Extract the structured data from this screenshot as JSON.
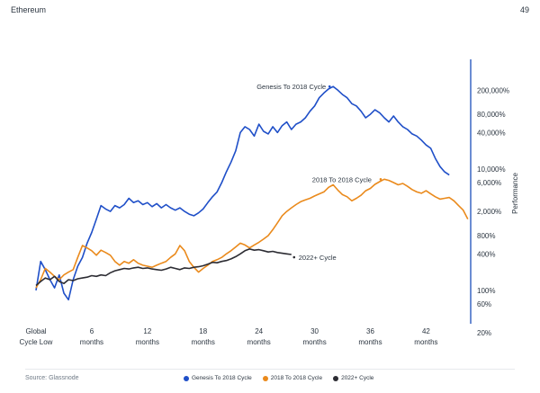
{
  "header": {
    "title": "Ethereum",
    "page_number": "49"
  },
  "source": "Source: Glassnode",
  "colors": {
    "genesis": "#1f4fc8",
    "cycle2018": "#ea8a1c",
    "cycle2022": "#2c2c33",
    "axis": "#3a66c4"
  },
  "chart_data": {
    "type": "line",
    "ylabel": "Performance",
    "yscale": "log",
    "ylim": [
      20,
      400000
    ],
    "xlim": [
      0,
      47
    ],
    "x_ticks": [
      {
        "v": 0,
        "line1": "Global",
        "line2": "Cycle Low"
      },
      {
        "v": 6,
        "line1": "6",
        "line2": "months"
      },
      {
        "v": 12,
        "line1": "12",
        "line2": "months"
      },
      {
        "v": 18,
        "line1": "18",
        "line2": "months"
      },
      {
        "v": 24,
        "line1": "24",
        "line2": "months"
      },
      {
        "v": 30,
        "line1": "30",
        "line2": "months"
      },
      {
        "v": 36,
        "line1": "36",
        "line2": "months"
      },
      {
        "v": 42,
        "line1": "42",
        "line2": "months"
      }
    ],
    "y_ticks": [
      {
        "v": 200000,
        "label": "200,000%"
      },
      {
        "v": 80000,
        "label": "80,000%"
      },
      {
        "v": 40000,
        "label": "40,000%"
      },
      {
        "v": 10000,
        "label": "10,000%"
      },
      {
        "v": 6000,
        "label": "6,000%"
      },
      {
        "v": 2000,
        "label": "2,000%"
      },
      {
        "v": 800,
        "label": "800%"
      },
      {
        "v": 400,
        "label": "400%"
      },
      {
        "v": 100,
        "label": "100%"
      },
      {
        "v": 60,
        "label": "60%"
      },
      {
        "v": 20,
        "label": "20%"
      }
    ],
    "series": [
      {
        "name": "Genesis To 2018 Cycle",
        "key": "genesis",
        "points": [
          [
            0,
            100
          ],
          [
            0.5,
            300
          ],
          [
            1,
            220
          ],
          [
            1.5,
            150
          ],
          [
            2,
            110
          ],
          [
            2.5,
            180
          ],
          [
            3,
            90
          ],
          [
            3.5,
            70
          ],
          [
            4,
            150
          ],
          [
            4.5,
            250
          ],
          [
            5,
            350
          ],
          [
            5.5,
            600
          ],
          [
            6,
            900
          ],
          [
            6.5,
            1500
          ],
          [
            7,
            2500
          ],
          [
            7.5,
            2200
          ],
          [
            8,
            2000
          ],
          [
            8.5,
            2500
          ],
          [
            9,
            2300
          ],
          [
            9.5,
            2600
          ],
          [
            10,
            3300
          ],
          [
            10.5,
            2800
          ],
          [
            11,
            3000
          ],
          [
            11.5,
            2600
          ],
          [
            12,
            2800
          ],
          [
            12.5,
            2400
          ],
          [
            13,
            2700
          ],
          [
            13.5,
            2300
          ],
          [
            14,
            2600
          ],
          [
            14.5,
            2300
          ],
          [
            15,
            2100
          ],
          [
            15.5,
            2300
          ],
          [
            16,
            2000
          ],
          [
            16.5,
            1800
          ],
          [
            17,
            1700
          ],
          [
            17.5,
            1900
          ],
          [
            18,
            2200
          ],
          [
            18.5,
            2800
          ],
          [
            19,
            3500
          ],
          [
            19.5,
            4200
          ],
          [
            20,
            6000
          ],
          [
            20.5,
            9000
          ],
          [
            21,
            13000
          ],
          [
            21.5,
            20000
          ],
          [
            22,
            40000
          ],
          [
            22.5,
            50000
          ],
          [
            23,
            45000
          ],
          [
            23.5,
            35000
          ],
          [
            24,
            55000
          ],
          [
            24.5,
            42000
          ],
          [
            25,
            38000
          ],
          [
            25.5,
            50000
          ],
          [
            26,
            40000
          ],
          [
            26.5,
            52000
          ],
          [
            27,
            60000
          ],
          [
            27.5,
            45000
          ],
          [
            28,
            55000
          ],
          [
            28.5,
            60000
          ],
          [
            29,
            70000
          ],
          [
            29.5,
            90000
          ],
          [
            30,
            110000
          ],
          [
            30.5,
            150000
          ],
          [
            31,
            180000
          ],
          [
            31.5,
            210000
          ],
          [
            32,
            230000
          ],
          [
            32.5,
            200000
          ],
          [
            33,
            170000
          ],
          [
            33.5,
            150000
          ],
          [
            34,
            120000
          ],
          [
            34.5,
            110000
          ],
          [
            35,
            90000
          ],
          [
            35.5,
            70000
          ],
          [
            36,
            80000
          ],
          [
            36.5,
            95000
          ],
          [
            37,
            85000
          ],
          [
            37.5,
            70000
          ],
          [
            38,
            60000
          ],
          [
            38.5,
            75000
          ],
          [
            39,
            60000
          ],
          [
            39.5,
            50000
          ],
          [
            40,
            45000
          ],
          [
            40.5,
            38000
          ],
          [
            41,
            35000
          ],
          [
            41.5,
            30000
          ],
          [
            42,
            25000
          ],
          [
            42.5,
            22000
          ],
          [
            43,
            15000
          ],
          [
            43.5,
            11000
          ],
          [
            44,
            9000
          ],
          [
            44.5,
            8000
          ]
        ]
      },
      {
        "name": "2018 To 2018 Cycle",
        "key": "cycle2018",
        "points": [
          [
            0,
            110
          ],
          [
            0.5,
            150
          ],
          [
            1,
            230
          ],
          [
            1.5,
            200
          ],
          [
            2,
            170
          ],
          [
            2.5,
            150
          ],
          [
            3,
            180
          ],
          [
            3.5,
            200
          ],
          [
            4,
            220
          ],
          [
            4.5,
            350
          ],
          [
            5,
            550
          ],
          [
            5.5,
            500
          ],
          [
            6,
            450
          ],
          [
            6.5,
            380
          ],
          [
            7,
            460
          ],
          [
            7.5,
            420
          ],
          [
            8,
            380
          ],
          [
            8.5,
            300
          ],
          [
            9,
            260
          ],
          [
            9.5,
            300
          ],
          [
            10,
            280
          ],
          [
            10.5,
            320
          ],
          [
            11,
            280
          ],
          [
            11.5,
            260
          ],
          [
            12,
            250
          ],
          [
            12.5,
            240
          ],
          [
            13,
            260
          ],
          [
            13.5,
            280
          ],
          [
            14,
            300
          ],
          [
            14.5,
            350
          ],
          [
            15,
            400
          ],
          [
            15.5,
            550
          ],
          [
            16,
            450
          ],
          [
            16.5,
            300
          ],
          [
            17,
            240
          ],
          [
            17.5,
            200
          ],
          [
            18,
            230
          ],
          [
            18.5,
            260
          ],
          [
            19,
            300
          ],
          [
            19.5,
            320
          ],
          [
            20,
            350
          ],
          [
            20.5,
            400
          ],
          [
            21,
            450
          ],
          [
            21.5,
            520
          ],
          [
            22,
            600
          ],
          [
            22.5,
            560
          ],
          [
            23,
            500
          ],
          [
            23.5,
            560
          ],
          [
            24,
            620
          ],
          [
            24.5,
            700
          ],
          [
            25,
            800
          ],
          [
            25.5,
            1000
          ],
          [
            26,
            1300
          ],
          [
            26.5,
            1700
          ],
          [
            27,
            2000
          ],
          [
            27.5,
            2300
          ],
          [
            28,
            2600
          ],
          [
            28.5,
            2900
          ],
          [
            29,
            3100
          ],
          [
            29.5,
            3300
          ],
          [
            30,
            3600
          ],
          [
            30.5,
            3900
          ],
          [
            31,
            4200
          ],
          [
            31.5,
            5000
          ],
          [
            32,
            5500
          ],
          [
            32.5,
            4500
          ],
          [
            33,
            3800
          ],
          [
            33.5,
            3500
          ],
          [
            34,
            3000
          ],
          [
            34.5,
            3300
          ],
          [
            35,
            3700
          ],
          [
            35.5,
            4400
          ],
          [
            36,
            4800
          ],
          [
            36.5,
            5600
          ],
          [
            37,
            6200
          ],
          [
            37.5,
            6800
          ],
          [
            38,
            6500
          ],
          [
            38.5,
            6000
          ],
          [
            39,
            5500
          ],
          [
            39.5,
            5800
          ],
          [
            40,
            5200
          ],
          [
            40.5,
            4600
          ],
          [
            41,
            4200
          ],
          [
            41.5,
            4000
          ],
          [
            42,
            4400
          ],
          [
            42.5,
            3900
          ],
          [
            43,
            3500
          ],
          [
            43.5,
            3200
          ],
          [
            44,
            3300
          ],
          [
            44.5,
            3400
          ],
          [
            45,
            3000
          ],
          [
            45.5,
            2500
          ],
          [
            46,
            2100
          ],
          [
            46.5,
            1500
          ]
        ]
      },
      {
        "name": "2022+ Cycle",
        "key": "cycle2022",
        "points": [
          [
            0,
            120
          ],
          [
            0.5,
            140
          ],
          [
            1,
            160
          ],
          [
            1.5,
            150
          ],
          [
            2,
            170
          ],
          [
            2.5,
            140
          ],
          [
            3,
            130
          ],
          [
            3.5,
            150
          ],
          [
            4,
            145
          ],
          [
            4.5,
            155
          ],
          [
            5,
            160
          ],
          [
            5.5,
            165
          ],
          [
            6,
            175
          ],
          [
            6.5,
            170
          ],
          [
            7,
            180
          ],
          [
            7.5,
            175
          ],
          [
            8,
            195
          ],
          [
            8.5,
            210
          ],
          [
            9,
            220
          ],
          [
            9.5,
            230
          ],
          [
            10,
            225
          ],
          [
            10.5,
            235
          ],
          [
            11,
            240
          ],
          [
            11.5,
            230
          ],
          [
            12,
            235
          ],
          [
            12.5,
            225
          ],
          [
            13,
            220
          ],
          [
            13.5,
            215
          ],
          [
            14,
            225
          ],
          [
            14.5,
            240
          ],
          [
            15,
            230
          ],
          [
            15.5,
            220
          ],
          [
            16,
            235
          ],
          [
            16.5,
            230
          ],
          [
            17,
            240
          ],
          [
            17.5,
            245
          ],
          [
            18,
            255
          ],
          [
            18.5,
            270
          ],
          [
            19,
            290
          ],
          [
            19.5,
            285
          ],
          [
            20,
            300
          ],
          [
            20.5,
            310
          ],
          [
            21,
            330
          ],
          [
            21.5,
            360
          ],
          [
            22,
            400
          ],
          [
            22.5,
            450
          ],
          [
            23,
            480
          ],
          [
            23.5,
            460
          ],
          [
            24,
            470
          ],
          [
            24.5,
            450
          ],
          [
            25,
            430
          ],
          [
            25.5,
            440
          ],
          [
            26,
            420
          ],
          [
            26.5,
            410
          ],
          [
            27,
            400
          ],
          [
            27.5,
            390
          ]
        ]
      }
    ]
  }
}
